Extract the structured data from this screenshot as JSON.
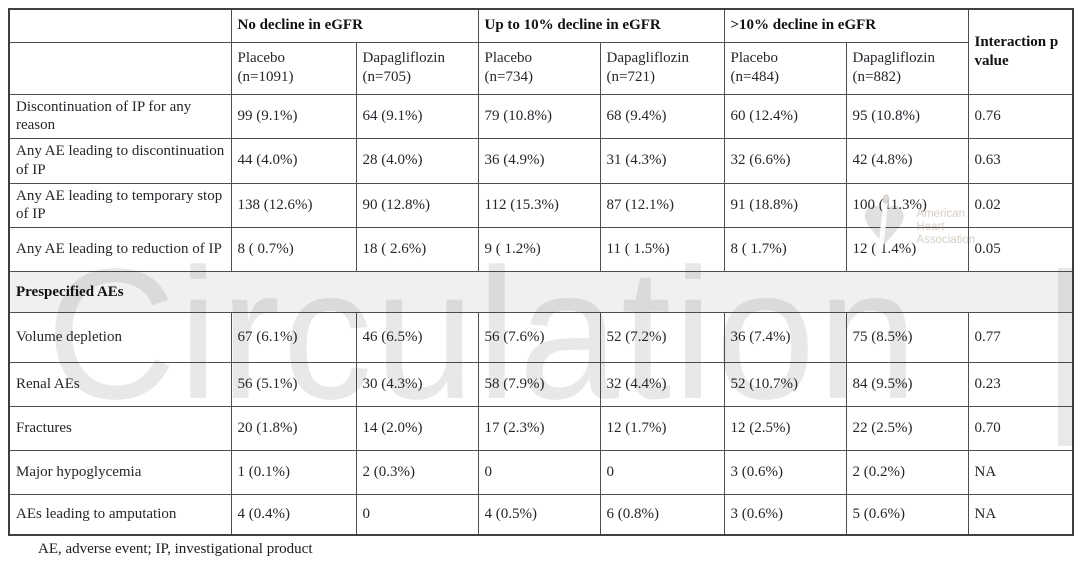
{
  "watermark": {
    "journal": "Circulation",
    "logo_lines": [
      "American",
      "Heart",
      "Association"
    ],
    "heart_glyph": "♥"
  },
  "table": {
    "col_groups": [
      {
        "label": "No decline in eGFR"
      },
      {
        "label": "Up to 10% decline in eGFR"
      },
      {
        "label": ">10% decline in eGFR"
      }
    ],
    "interaction_header": "Interaction p value",
    "sub_headers": [
      {
        "arm": "Placebo",
        "n": "(n=1091)"
      },
      {
        "arm": "Dapagliflozin",
        "n": "(n=705)"
      },
      {
        "arm": "Placebo",
        "n": "(n=734)"
      },
      {
        "arm": "Dapagliflozin",
        "n": "(n=721)"
      },
      {
        "arm": "Placebo",
        "n": "(n=484)"
      },
      {
        "arm": "Dapagliflozin",
        "n": "(n=882)"
      }
    ],
    "rows": [
      {
        "label": "Discontinuation of IP for any reason",
        "values": [
          "99 (9.1%)",
          "64 (9.1%)",
          "79 (10.8%)",
          "68 (9.4%)",
          "60 (12.4%)",
          "95 (10.8%)",
          "0.76"
        ]
      },
      {
        "label": "Any AE leading to discontinuation of IP",
        "values": [
          "44 (4.0%)",
          "28 (4.0%)",
          "36 (4.9%)",
          "31 (4.3%)",
          "32 (6.6%)",
          "42 (4.8%)",
          "0.63"
        ]
      },
      {
        "label": "Any AE leading to temporary stop of IP",
        "values": [
          "138 (12.6%)",
          "90 (12.8%)",
          "112 (15.3%)",
          "87 (12.1%)",
          "91 (18.8%)",
          "100 (11.3%)",
          "0.02"
        ]
      },
      {
        "label": "Any AE leading to reduction of IP",
        "values": [
          "8 ( 0.7%)",
          "18 ( 2.6%)",
          "9 ( 1.2%)",
          "11 ( 1.5%)",
          "8 ( 1.7%)",
          "12 ( 1.4%)",
          "0.05"
        ]
      }
    ],
    "section_header": "Prespecified AEs",
    "section_rows": [
      {
        "label": "Volume depletion",
        "values": [
          "67 (6.1%)",
          "46 (6.5%)",
          "56 (7.6%)",
          "52 (7.2%)",
          "36 (7.4%)",
          "75 (8.5%)",
          "0.77"
        ]
      },
      {
        "label": "Renal AEs",
        "values": [
          "56 (5.1%)",
          "30 (4.3%)",
          "58 (7.9%)",
          "32 (4.4%)",
          "52 (10.7%)",
          "84 (9.5%)",
          "0.23"
        ]
      },
      {
        "label": "Fractures",
        "values": [
          "20 (1.8%)",
          "14 (2.0%)",
          "17 (2.3%)",
          "12 (1.7%)",
          "12 (2.5%)",
          "22 (2.5%)",
          "0.70"
        ]
      },
      {
        "label": "Major hypoglycemia",
        "values": [
          "1 (0.1%)",
          "2 (0.3%)",
          "0",
          "0",
          "3 (0.6%)",
          "2 (0.2%)",
          "NA"
        ]
      },
      {
        "label": "AEs leading to amputation",
        "values": [
          "4 (0.4%)",
          "0",
          "4 (0.5%)",
          "6 (0.8%)",
          "3 (0.6%)",
          "5 (0.6%)",
          "NA"
        ]
      }
    ],
    "footnote": "AE, adverse event; IP, investigational product"
  }
}
